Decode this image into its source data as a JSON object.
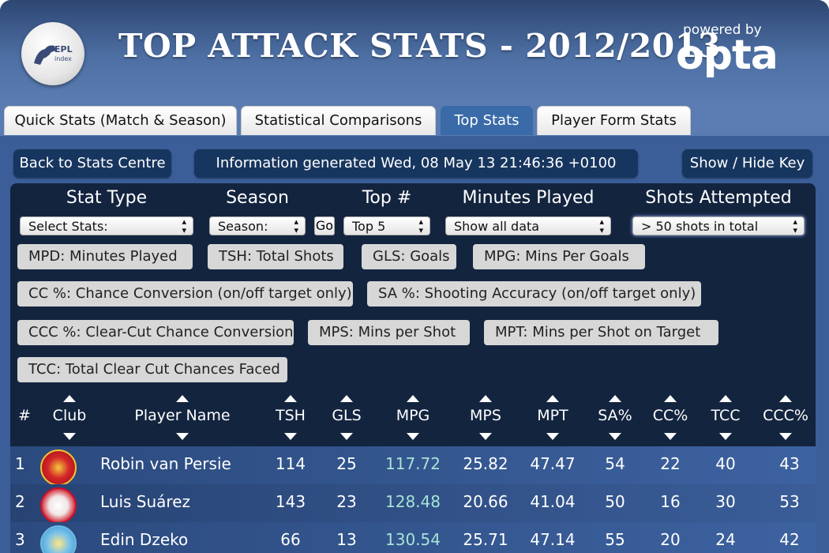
{
  "header": {
    "title": "TOP ATTACK STATS - 2012/2013",
    "powered_by": "powered by",
    "brand": "opta",
    "logo_text": "EPL index"
  },
  "tabs": [
    {
      "label": "Quick Stats (Match & Season)",
      "active": false
    },
    {
      "label": "Statistical Comparisons",
      "active": false
    },
    {
      "label": "Top Stats",
      "active": true
    },
    {
      "label": "Player Form Stats",
      "active": false
    }
  ],
  "toolbar": {
    "back_label": "Back to Stats Centre",
    "info_label": "Information generated Wed, 08 May 13 21:46:36 +0100",
    "key_toggle_label": "Show / Hide Key"
  },
  "filters": {
    "stat_type": {
      "label": "Stat Type",
      "value": "Select Stats:"
    },
    "season": {
      "label": "Season",
      "value": "Season:",
      "go_label": "Go"
    },
    "top": {
      "label": "Top #",
      "value": "Top 5"
    },
    "minutes": {
      "label": "Minutes Played",
      "value": "Show all data"
    },
    "shots": {
      "label": "Shots Attempted",
      "value": "> 50 shots in total"
    }
  },
  "key_items": [
    "MPD: Minutes Played",
    "TSH: Total Shots",
    "GLS: Goals",
    "MPG: Mins Per Goals",
    "CC %: Chance Conversion (on/off target only)",
    "SA %: Shooting Accuracy (on/off target only)",
    "CCC %: Clear-Cut Chance Conversion",
    "MPS: Mins per Shot",
    "MPT: Mins per Shot on Target",
    "TCC: Total Clear Cut Chances Faced"
  ],
  "table": {
    "columns": [
      "#",
      "Club",
      "Player Name",
      "TSH",
      "GLS",
      "MPG",
      "MPS",
      "MPT",
      "SA%",
      "CC%",
      "TCC",
      "CCC%"
    ],
    "rows": [
      {
        "rank": "1",
        "club": "Manchester United",
        "player": "Robin van Persie",
        "tsh": "114",
        "gls": "25",
        "mpg": "117.72",
        "mps": "25.82",
        "mpt": "47.47",
        "sa": "54",
        "cc": "22",
        "tcc": "40",
        "ccc": "43"
      },
      {
        "rank": "2",
        "club": "Liverpool",
        "player": "Luis Suárez",
        "tsh": "143",
        "gls": "23",
        "mpg": "128.48",
        "mps": "20.66",
        "mpt": "41.04",
        "sa": "50",
        "cc": "16",
        "tcc": "30",
        "ccc": "53"
      },
      {
        "rank": "3",
        "club": "Manchester City",
        "player": "Edin Dzeko",
        "tsh": "66",
        "gls": "13",
        "mpg": "130.54",
        "mps": "25.71",
        "mpt": "47.14",
        "sa": "55",
        "cc": "20",
        "tcc": "24",
        "ccc": "42"
      }
    ]
  },
  "colors": {
    "header_gradient_top": "#2d4672",
    "tab_active": "#3a6aa8",
    "panel": "#13243f",
    "button_dark": "#17365f",
    "mpg_text": "#a6e3d6"
  }
}
